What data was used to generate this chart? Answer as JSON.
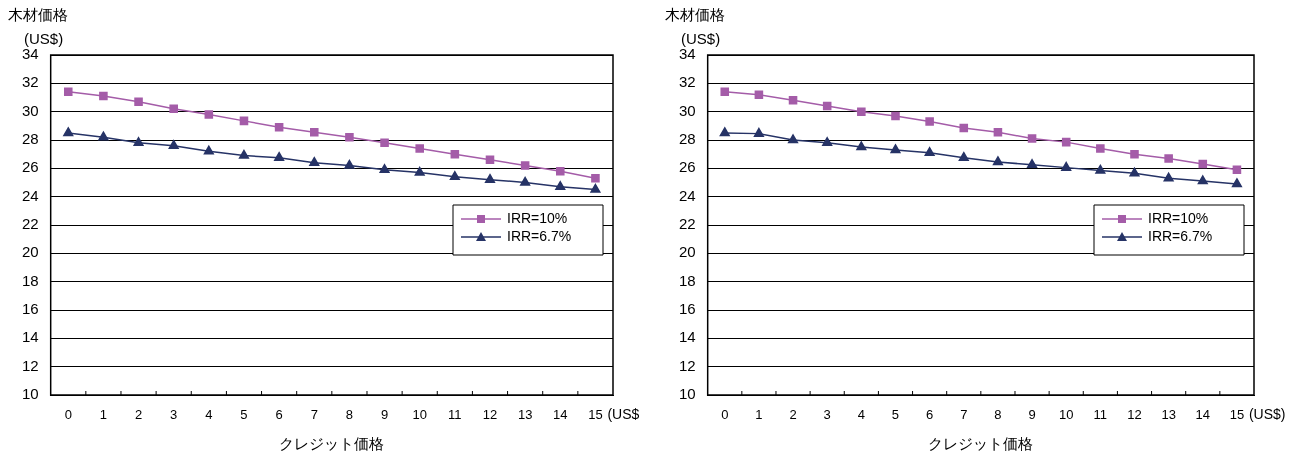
{
  "chart_data": [
    {
      "type": "line",
      "ylabel": "木材価格",
      "xlabel": "クレジット価格",
      "annotations": [
        "(US$)",
        "(US$"
      ],
      "categories": [
        "0",
        "1",
        "2",
        "3",
        "4",
        "5",
        "6",
        "7",
        "8",
        "9",
        "10",
        "11",
        "12",
        "13",
        "14",
        "15"
      ],
      "series": [
        {
          "name": "IRR=10%",
          "color": "#a45ca8",
          "marker": "square",
          "values": [
            31.4,
            31.1,
            30.7,
            30.2,
            29.8,
            29.35,
            28.9,
            28.55,
            28.2,
            27.8,
            27.4,
            27.0,
            26.6,
            26.2,
            25.8,
            25.3
          ]
        },
        {
          "name": "IRR=6.7%",
          "color": "#263366",
          "marker": "triangle",
          "values": [
            28.5,
            28.2,
            27.8,
            27.6,
            27.2,
            26.9,
            26.75,
            26.4,
            26.2,
            25.9,
            25.7,
            25.4,
            25.2,
            25.0,
            24.7,
            24.5
          ]
        }
      ],
      "ylim": [
        10,
        34
      ],
      "yticks": [
        10,
        12,
        14,
        16,
        18,
        20,
        22,
        24,
        26,
        28,
        30,
        32,
        34
      ],
      "grid": "y",
      "legend": "right"
    },
    {
      "type": "line",
      "ylabel": "木材価格",
      "xlabel": "クレジット価格",
      "annotations": [
        "(US$)",
        "(US$)"
      ],
      "categories": [
        "0",
        "1",
        "2",
        "3",
        "4",
        "5",
        "6",
        "7",
        "8",
        "9",
        "10",
        "11",
        "12",
        "13",
        "14",
        "15"
      ],
      "series": [
        {
          "name": "IRR=10%",
          "color": "#a45ca8",
          "marker": "square",
          "values": [
            31.4,
            31.2,
            30.8,
            30.4,
            30.0,
            29.7,
            29.3,
            28.85,
            28.55,
            28.1,
            27.85,
            27.4,
            27.0,
            26.7,
            26.3,
            25.9
          ]
        },
        {
          "name": "IRR=6.7%",
          "color": "#263366",
          "marker": "triangle",
          "values": [
            28.5,
            28.45,
            28.0,
            27.8,
            27.5,
            27.3,
            27.1,
            26.75,
            26.45,
            26.25,
            26.05,
            25.85,
            25.65,
            25.3,
            25.1,
            24.9
          ]
        }
      ],
      "ylim": [
        10,
        34
      ],
      "yticks": [
        10,
        12,
        14,
        16,
        18,
        20,
        22,
        24,
        26,
        28,
        30,
        32,
        34
      ],
      "grid": "y",
      "legend": "right"
    }
  ]
}
